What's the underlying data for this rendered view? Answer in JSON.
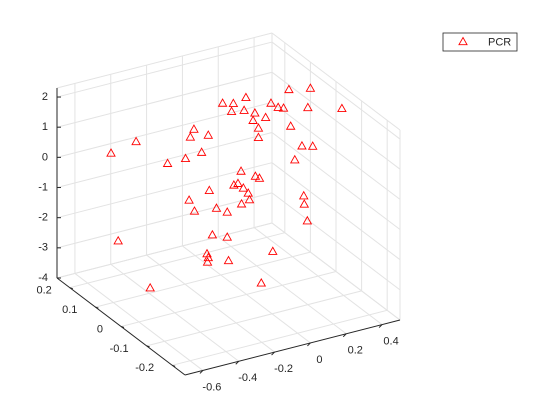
{
  "chart_data": {
    "type": "scatter3d",
    "series": [
      {
        "name": "PCR",
        "color": "#ff0000",
        "marker": "triangle",
        "x": [
          -0.47,
          -0.33,
          -0.43,
          -0.68,
          -0.44,
          -0.34,
          -0.15,
          -0.17,
          -0.07,
          -0.25,
          0.01,
          0.07,
          0.14,
          0.06,
          0.13,
          0.19,
          0.25,
          0.32,
          0.38,
          0.5,
          0.35,
          0.3,
          0.49,
          0.39,
          0.31,
          0.37,
          0.27,
          0.21,
          0.18,
          -0.32,
          -0.29,
          -0.35,
          -0.31,
          -0.25,
          -0.07,
          -0.19,
          -0.03,
          -0.16,
          0.01,
          -0.17,
          0.16,
          0.05,
          -0.07,
          -0.19,
          -0.25,
          -0.22,
          -0.36,
          -0.07,
          -0.1,
          0.29,
          -0.06,
          0.32,
          0.18,
          0.34,
          0.21,
          0.28
        ],
        "y": [
          0.2,
          0.2,
          0.2,
          -0.1,
          0,
          0,
          0.1,
          0.1,
          0.1,
          0,
          0.1,
          0.1,
          0.1,
          0.1,
          0.1,
          0.1,
          0.1,
          0.1,
          0.1,
          0.1,
          0.1,
          -0.03,
          -0.03,
          0.1,
          0,
          0,
          0,
          0.1,
          0.1,
          0,
          0,
          -0.1,
          -0.1,
          -0.1,
          0,
          -0.1,
          0,
          -0.1,
          0,
          -0.1,
          0.1,
          0,
          -0.1,
          0,
          -0.1,
          0,
          -0.1,
          0.1,
          0,
          0.1,
          -0.1,
          0,
          -0.1,
          0,
          0.1,
          0.1
        ],
        "z": [
          0.1,
          0.27,
          -2.87,
          -2.12,
          1.0,
          1.01,
          1.05,
          0.82,
          0.73,
          1.08,
          1.67,
          1.57,
          1.66,
          1.32,
          1.25,
          1.07,
          0.83,
          1.06,
          1.56,
          1.42,
          0.99,
          1.92,
          1.6,
          0.33,
          0.44,
          0.34,
          0.04,
          0.23,
          0.84,
          -0.4,
          -0.81,
          0.61,
          -0.04,
          -0.26,
          -0.28,
          0.6,
          0.12,
          0.4,
          -0.67,
          -0.11,
          -1.76,
          -0.17,
          0.59,
          -1.75,
          -1.09,
          -2.33,
          -1.75,
          -3.33,
          -2.74,
          -3.67,
          -2.9,
          -1.23,
          -0.65,
          -2.09,
          0.54,
          1.26
        ]
      }
    ],
    "xlim": [
      -0.7,
      0.5
    ],
    "ylim": [
      -0.25,
      0.25
    ],
    "zlim": [
      -4,
      2.3
    ],
    "xticks": [
      -0.6,
      -0.4,
      -0.2,
      0,
      0.2,
      0.4
    ],
    "yticks": [
      -0.2,
      -0.1,
      0,
      0.1,
      0.2
    ],
    "zticks": [
      -4,
      -3,
      -2,
      -1,
      0,
      1,
      2
    ],
    "grid": true,
    "legend": "northeast"
  }
}
